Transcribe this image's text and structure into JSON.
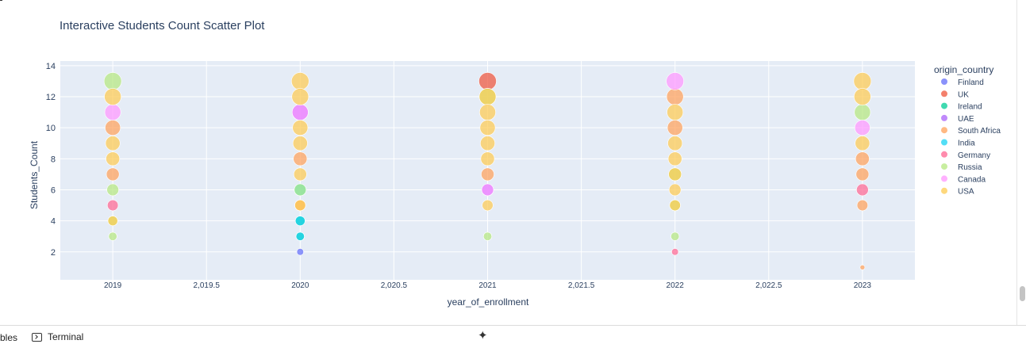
{
  "chart_data": {
    "type": "scatter",
    "title": "Interactive Students Count Scatter Plot",
    "xlabel": "year_of_enrollment",
    "ylabel": "Students_Count",
    "xlim": [
      2018.72,
      2023.28
    ],
    "ylim": [
      0.2,
      14.3
    ],
    "x_ticks": [
      2019,
      2019.5,
      2020,
      2020.5,
      2021,
      2021.5,
      2022,
      2022.5,
      2023
    ],
    "x_tick_labels": [
      "2019",
      "2,019.5",
      "2020",
      "2,020.5",
      "2021",
      "2,021.5",
      "2022",
      "2,022.5",
      "2023"
    ],
    "y_ticks": [
      2,
      4,
      6,
      8,
      10,
      12,
      14
    ],
    "y_tick_labels": [
      "2",
      "4",
      "6",
      "8",
      "10",
      "12",
      "14"
    ],
    "grid": true,
    "legend_title": "origin_country",
    "legend_position": "right",
    "series": [
      {
        "name": "Finland",
        "color": "#636efa",
        "points": [
          {
            "x": 2020,
            "y": 2
          }
        ]
      },
      {
        "name": "UK",
        "color": "#ef553b",
        "points": [
          {
            "x": 2021,
            "y": 13
          }
        ]
      },
      {
        "name": "Ireland",
        "color": "#00cc96",
        "points": [
          {
            "x": 2020,
            "y": 4
          },
          {
            "x": 2020,
            "y": 3
          }
        ]
      },
      {
        "name": "UAE",
        "color": "#ab63fa",
        "points": [
          {
            "x": 2020,
            "y": 11
          },
          {
            "x": 2021,
            "y": 6
          }
        ]
      },
      {
        "name": "South Africa",
        "color": "#ffa15a",
        "points": [
          {
            "x": 2019,
            "y": 10
          },
          {
            "x": 2019,
            "y": 7
          },
          {
            "x": 2020,
            "y": 8
          },
          {
            "x": 2020,
            "y": 5
          },
          {
            "x": 2021,
            "y": 7
          },
          {
            "x": 2022,
            "y": 12
          },
          {
            "x": 2022,
            "y": 10
          },
          {
            "x": 2023,
            "y": 8
          },
          {
            "x": 2023,
            "y": 7
          },
          {
            "x": 2023,
            "y": 5
          },
          {
            "x": 2023,
            "y": 1
          }
        ]
      },
      {
        "name": "India",
        "color": "#19d3f3",
        "points": [
          {
            "x": 2020,
            "y": 6
          },
          {
            "x": 2020,
            "y": 4
          },
          {
            "x": 2020,
            "y": 3
          }
        ]
      },
      {
        "name": "Germany",
        "color": "#ff6692",
        "points": [
          {
            "x": 2019,
            "y": 5
          },
          {
            "x": 2022,
            "y": 2
          },
          {
            "x": 2023,
            "y": 6
          }
        ]
      },
      {
        "name": "Russia",
        "color": "#b6e880",
        "points": [
          {
            "x": 2019,
            "y": 13
          },
          {
            "x": 2019,
            "y": 6
          },
          {
            "x": 2019,
            "y": 4
          },
          {
            "x": 2019,
            "y": 3
          },
          {
            "x": 2020,
            "y": 6
          },
          {
            "x": 2021,
            "y": 12
          },
          {
            "x": 2021,
            "y": 3
          },
          {
            "x": 2022,
            "y": 7
          },
          {
            "x": 2022,
            "y": 5
          },
          {
            "x": 2022,
            "y": 3
          },
          {
            "x": 2023,
            "y": 11
          }
        ]
      },
      {
        "name": "Canada",
        "color": "#ff97ff",
        "points": [
          {
            "x": 2019,
            "y": 11
          },
          {
            "x": 2020,
            "y": 11
          },
          {
            "x": 2021,
            "y": 6
          },
          {
            "x": 2022,
            "y": 13
          },
          {
            "x": 2023,
            "y": 10
          }
        ]
      },
      {
        "name": "USA",
        "color": "#fecb52",
        "points": [
          {
            "x": 2019,
            "y": 12
          },
          {
            "x": 2019,
            "y": 9
          },
          {
            "x": 2019,
            "y": 8
          },
          {
            "x": 2019,
            "y": 4
          },
          {
            "x": 2020,
            "y": 13
          },
          {
            "x": 2020,
            "y": 12
          },
          {
            "x": 2020,
            "y": 10
          },
          {
            "x": 2020,
            "y": 9
          },
          {
            "x": 2020,
            "y": 7
          },
          {
            "x": 2020,
            "y": 5
          },
          {
            "x": 2021,
            "y": 12
          },
          {
            "x": 2021,
            "y": 11
          },
          {
            "x": 2021,
            "y": 10
          },
          {
            "x": 2021,
            "y": 9
          },
          {
            "x": 2021,
            "y": 8
          },
          {
            "x": 2021,
            "y": 5
          },
          {
            "x": 2022,
            "y": 11
          },
          {
            "x": 2022,
            "y": 9
          },
          {
            "x": 2022,
            "y": 8
          },
          {
            "x": 2022,
            "y": 7
          },
          {
            "x": 2022,
            "y": 6
          },
          {
            "x": 2022,
            "y": 5
          },
          {
            "x": 2023,
            "y": 13
          },
          {
            "x": 2023,
            "y": 12
          },
          {
            "x": 2023,
            "y": 9
          }
        ]
      }
    ]
  },
  "bottom_bar": {
    "tab_fragment": "bles",
    "terminal_label": "Terminal",
    "sparkle_icon": "sparkle-icon",
    "terminal_icon": "terminal-icon"
  }
}
